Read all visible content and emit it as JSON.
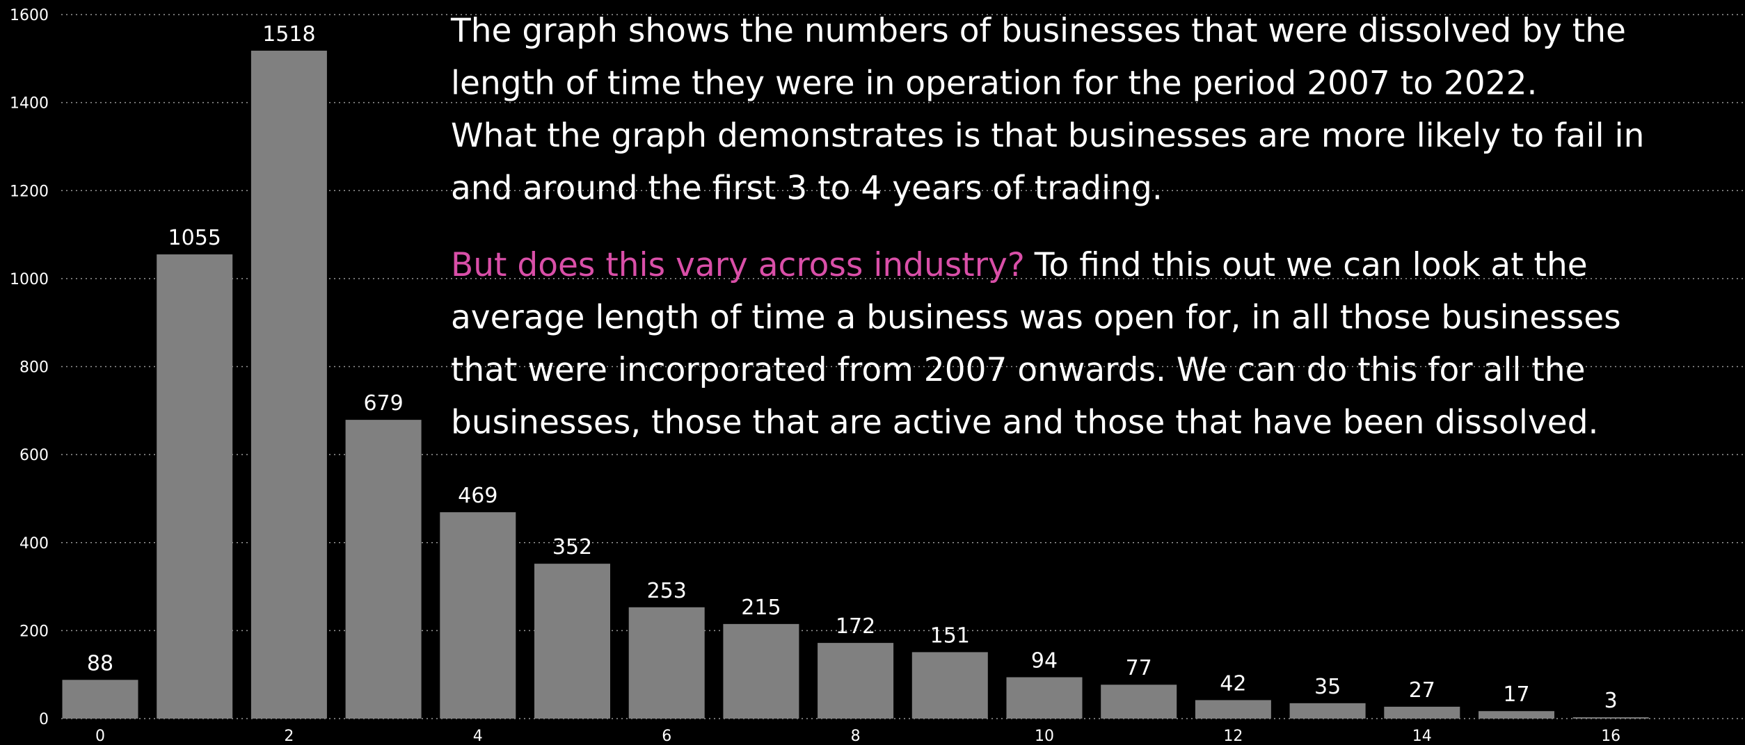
{
  "chart_data": {
    "type": "bar",
    "categories": [
      "0",
      null,
      "2",
      null,
      "4",
      null,
      "6",
      null,
      "8",
      null,
      "10",
      null,
      "12",
      null,
      "14",
      null,
      "16"
    ],
    "values": [
      88,
      1055,
      1518,
      679,
      469,
      352,
      253,
      215,
      172,
      151,
      94,
      77,
      42,
      35,
      27,
      17,
      3
    ],
    "color": "#808080",
    "ylim": [
      0,
      1600
    ],
    "yticks": [
      0,
      200,
      400,
      600,
      800,
      1000,
      1200,
      1400,
      1600
    ],
    "grid": true,
    "annotations": {
      "paragraph_1": [
        "The graph shows the numbers of businesses that were dissolved by the",
        "length of time they were in operation for the period 2007 to 2022.",
        "What the graph demonstrates is that businesses are more likely to fail in",
        "and around the first 3 to 4 years of trading."
      ],
      "paragraph_2_highlight": "But does this vary across industry?",
      "paragraph_2": [
        "To find this out we can look at the",
        "average length of time a business was open for, in all those businesses",
        "that were incorporated from 2007 onwards.  We can do this for all the",
        "businesses, those that are active and those that have been dissolved."
      ]
    }
  }
}
